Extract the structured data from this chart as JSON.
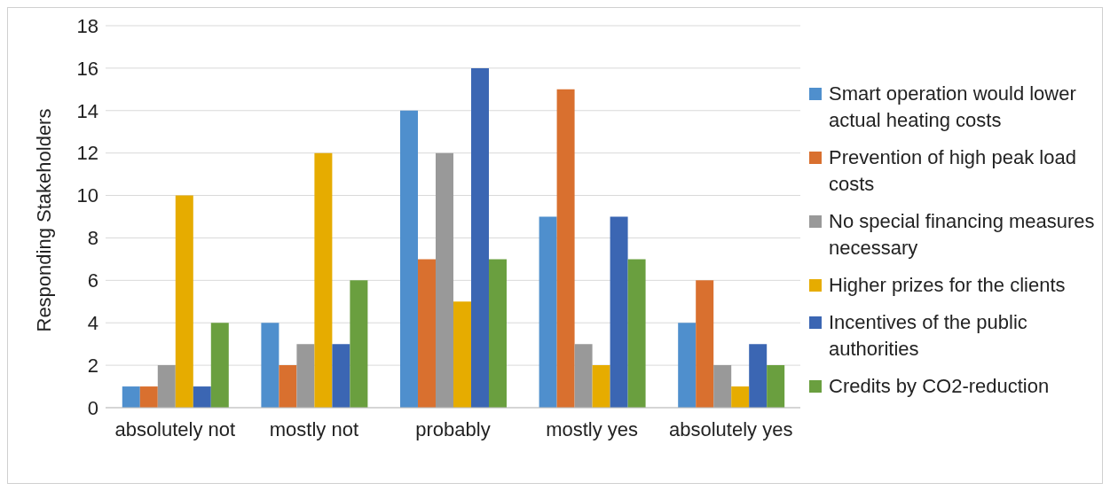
{
  "chart_data": {
    "type": "bar",
    "ylabel": "Responding Stakeholders",
    "categories": [
      "absolutely not",
      "mostly not",
      "probably",
      "mostly yes",
      "absolutely yes"
    ],
    "series": [
      {
        "name": "Smart operation would lower actual heating costs",
        "color": "#4f8fcd",
        "values": [
          1,
          4,
          14,
          9,
          4
        ]
      },
      {
        "name": "Prevention of high peak load costs",
        "color": "#d9702f",
        "values": [
          1,
          2,
          7,
          15,
          6
        ]
      },
      {
        "name": "No special financing measures necessary",
        "color": "#999999",
        "values": [
          2,
          3,
          12,
          3,
          2
        ]
      },
      {
        "name": "Higher prizes for the clients",
        "color": "#e6ac00",
        "values": [
          10,
          12,
          5,
          2,
          1
        ]
      },
      {
        "name": "Incentives of the public authorities",
        "color": "#3b66b3",
        "values": [
          1,
          3,
          16,
          9,
          3
        ]
      },
      {
        "name": "Credits by CO2-reduction",
        "color": "#6a9f3f",
        "values": [
          4,
          6,
          7,
          7,
          2
        ]
      }
    ],
    "ylim": [
      0,
      18
    ],
    "yticks": [
      0,
      2,
      4,
      6,
      8,
      10,
      12,
      14,
      16,
      18
    ],
    "grid": "y",
    "legend": "right"
  }
}
